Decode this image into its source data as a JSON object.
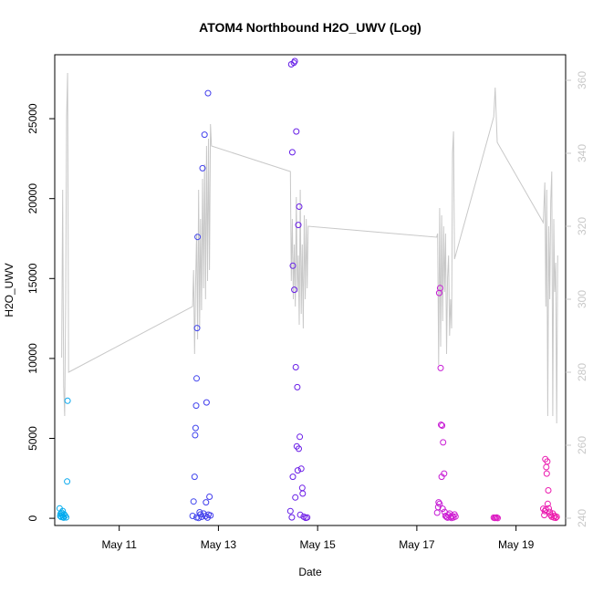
{
  "chart_data": {
    "type": "scatter",
    "title": "ATOM4 Northbound H2O_UWV (Log)",
    "xlabel": "Date",
    "ylabel": "H2O_UWV",
    "x_unit": "days since May 1",
    "xlim": [
      9.7,
      20.0
    ],
    "ylim": [
      -450,
      29000
    ],
    "x_ticks": [
      {
        "value": 11,
        "label": "May 11"
      },
      {
        "value": 13,
        "label": "May 13"
      },
      {
        "value": 15,
        "label": "May 15"
      },
      {
        "value": 17,
        "label": "May 17"
      },
      {
        "value": 19,
        "label": "May 19"
      }
    ],
    "y_ticks": [
      0,
      5000,
      10000,
      15000,
      20000,
      25000
    ],
    "secondary_axis": {
      "color": "#c8c8c8",
      "ylim": [
        238,
        367
      ],
      "ticks": [
        240,
        260,
        280,
        300,
        320,
        340,
        360
      ],
      "line": [
        [
          9.84,
          284
        ],
        [
          9.86,
          330
        ],
        [
          9.88,
          276
        ],
        [
          9.9,
          268
        ],
        [
          9.92,
          300
        ],
        [
          9.94,
          350
        ],
        [
          9.96,
          362
        ],
        [
          9.98,
          280
        ],
        [
          12.48,
          298
        ],
        [
          12.5,
          308
        ],
        [
          12.52,
          285
        ],
        [
          12.54,
          304
        ],
        [
          12.56,
          318
        ],
        [
          12.58,
          289
        ],
        [
          12.6,
          330
        ],
        [
          12.62,
          292
        ],
        [
          12.64,
          322
        ],
        [
          12.66,
          297
        ],
        [
          12.68,
          333
        ],
        [
          12.7,
          303
        ],
        [
          12.72,
          337
        ],
        [
          12.74,
          300
        ],
        [
          12.76,
          342
        ],
        [
          12.78,
          305
        ],
        [
          12.8,
          344
        ],
        [
          12.82,
          308
        ],
        [
          12.84,
          348
        ],
        [
          12.86,
          342
        ],
        [
          14.45,
          335
        ],
        [
          14.47,
          305
        ],
        [
          14.49,
          322
        ],
        [
          14.51,
          300
        ],
        [
          14.53,
          315
        ],
        [
          14.55,
          298
        ],
        [
          14.57,
          328
        ],
        [
          14.59,
          302
        ],
        [
          14.61,
          312
        ],
        [
          14.63,
          293
        ],
        [
          14.65,
          330
        ],
        [
          14.67,
          296
        ],
        [
          14.69,
          315
        ],
        [
          14.71,
          292
        ],
        [
          14.73,
          323
        ],
        [
          14.75,
          300
        ],
        [
          14.77,
          322
        ],
        [
          14.79,
          303
        ],
        [
          14.81,
          320
        ],
        [
          17.4,
          317
        ],
        [
          17.42,
          318
        ],
        [
          17.44,
          282
        ],
        [
          17.46,
          325
        ],
        [
          17.48,
          287
        ],
        [
          17.5,
          323
        ],
        [
          17.52,
          294
        ],
        [
          17.54,
          320
        ],
        [
          17.56,
          302
        ],
        [
          17.58,
          318
        ],
        [
          17.6,
          285
        ],
        [
          17.62,
          306
        ],
        [
          17.64,
          312
        ],
        [
          17.66,
          290
        ],
        [
          17.68,
          300
        ],
        [
          17.7,
          292
        ],
        [
          17.72,
          340
        ],
        [
          17.74,
          346
        ],
        [
          17.76,
          311
        ],
        [
          18.55,
          350
        ],
        [
          18.58,
          358
        ],
        [
          18.62,
          343
        ],
        [
          19.55,
          321
        ],
        [
          19.58,
          332
        ],
        [
          19.6,
          298
        ],
        [
          19.62,
          330
        ],
        [
          19.64,
          268
        ],
        [
          19.66,
          320
        ],
        [
          19.68,
          300
        ],
        [
          19.7,
          327
        ],
        [
          19.72,
          335
        ],
        [
          19.74,
          268
        ],
        [
          19.76,
          322
        ],
        [
          19.78,
          302
        ],
        [
          19.8,
          310
        ],
        [
          19.82,
          266
        ],
        [
          19.84,
          312
        ]
      ]
    },
    "series": [
      {
        "name": "H2O_UWV",
        "points": [
          [
            9.8,
            620
          ],
          [
            9.81,
            150
          ],
          [
            9.82,
            280
          ],
          [
            9.83,
            80
          ],
          [
            9.84,
            350
          ],
          [
            9.85,
            200
          ],
          [
            9.86,
            460
          ],
          [
            9.87,
            100
          ],
          [
            9.88,
            40
          ],
          [
            9.89,
            250
          ],
          [
            9.91,
            160
          ],
          [
            9.93,
            60
          ],
          [
            9.95,
            2300
          ],
          [
            9.96,
            7350
          ],
          [
            12.5,
            1050
          ],
          [
            12.52,
            2600
          ],
          [
            12.53,
            5200
          ],
          [
            12.54,
            5650
          ],
          [
            12.55,
            7050
          ],
          [
            12.56,
            8750
          ],
          [
            12.57,
            11900
          ],
          [
            12.58,
            17600
          ],
          [
            12.6,
            20
          ],
          [
            12.62,
            380
          ],
          [
            12.64,
            240
          ],
          [
            12.66,
            90
          ],
          [
            12.68,
            21900
          ],
          [
            12.7,
            300
          ],
          [
            12.72,
            24000
          ],
          [
            12.74,
            140
          ],
          [
            12.76,
            7250
          ],
          [
            12.78,
            40
          ],
          [
            12.79,
            26600
          ],
          [
            12.8,
            230
          ],
          [
            12.82,
            1350
          ],
          [
            12.84,
            180
          ],
          [
            12.48,
            150
          ],
          [
            12.56,
            60
          ],
          [
            12.75,
            1000
          ],
          [
            14.45,
            450
          ],
          [
            14.47,
            28400
          ],
          [
            14.49,
            22900
          ],
          [
            14.5,
            15800
          ],
          [
            14.52,
            28500
          ],
          [
            14.53,
            14300
          ],
          [
            14.54,
            28600
          ],
          [
            14.56,
            9450
          ],
          [
            14.57,
            24200
          ],
          [
            14.58,
            4500
          ],
          [
            14.59,
            8200
          ],
          [
            14.6,
            3000
          ],
          [
            14.61,
            18350
          ],
          [
            14.62,
            4350
          ],
          [
            14.63,
            19500
          ],
          [
            14.64,
            5100
          ],
          [
            14.65,
            220
          ],
          [
            14.67,
            3100
          ],
          [
            14.69,
            1900
          ],
          [
            14.7,
            1550
          ],
          [
            14.72,
            100
          ],
          [
            14.55,
            1300
          ],
          [
            14.5,
            2600
          ],
          [
            14.48,
            60
          ],
          [
            14.76,
            30
          ],
          [
            14.79,
            50
          ],
          [
            17.45,
            14100
          ],
          [
            17.47,
            14400
          ],
          [
            17.48,
            9400
          ],
          [
            17.49,
            5850
          ],
          [
            17.51,
            5800
          ],
          [
            17.53,
            4750
          ],
          [
            17.55,
            2800
          ],
          [
            17.5,
            2600
          ],
          [
            17.43,
            700
          ],
          [
            17.44,
            1000
          ],
          [
            17.46,
            900
          ],
          [
            17.52,
            600
          ],
          [
            17.56,
            400
          ],
          [
            17.58,
            150
          ],
          [
            17.6,
            80
          ],
          [
            17.62,
            40
          ],
          [
            17.64,
            200
          ],
          [
            17.66,
            300
          ],
          [
            17.68,
            90
          ],
          [
            17.7,
            20
          ],
          [
            17.72,
            140
          ],
          [
            17.74,
            60
          ],
          [
            17.76,
            240
          ],
          [
            17.78,
            110
          ],
          [
            17.41,
            350
          ],
          [
            18.55,
            40
          ],
          [
            18.57,
            20
          ],
          [
            18.59,
            30
          ],
          [
            18.61,
            50
          ],
          [
            18.63,
            10
          ],
          [
            19.55,
            600
          ],
          [
            19.57,
            200
          ],
          [
            19.59,
            3700
          ],
          [
            19.61,
            3200
          ],
          [
            19.62,
            2800
          ],
          [
            19.63,
            3550
          ],
          [
            19.64,
            900
          ],
          [
            19.65,
            1750
          ],
          [
            19.66,
            620
          ],
          [
            19.68,
            400
          ],
          [
            19.7,
            200
          ],
          [
            19.72,
            100
          ],
          [
            19.74,
            300
          ],
          [
            19.76,
            50
          ],
          [
            19.78,
            150
          ],
          [
            19.8,
            30
          ],
          [
            19.82,
            90
          ],
          [
            19.6,
            550
          ],
          [
            19.58,
            450
          ]
        ]
      }
    ],
    "color_gradient": [
      "#00b2ee",
      "#3a5cf0",
      "#4b1fe8",
      "#9b1be6",
      "#d41cd0",
      "#f01ca8"
    ]
  }
}
